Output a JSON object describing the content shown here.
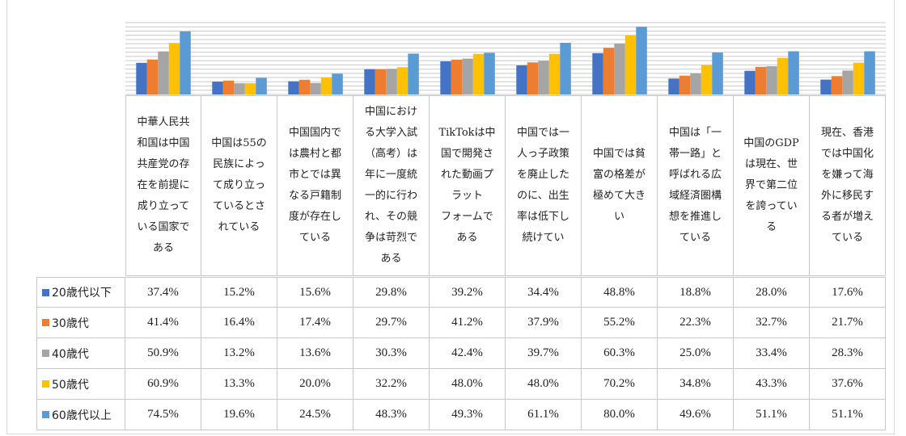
{
  "chart_data": {
    "type": "bar",
    "title": "",
    "xlabel": "",
    "ylabel": "",
    "ylim": [
      0,
      85
    ],
    "grid": true,
    "legend": "left",
    "categories": [
      "中華人民共和国は中国共産党の存在を前提に成り立っている国家である",
      "中国は55の民族によって成り立っているとされている",
      "中国国内では農村と都市とでは異なる戸籍制度が存在している",
      "中国における大学入試（高考）は年に一度統一的に行われ、その競争は苛烈である",
      "TikTokは中国で開発された動画プラットフォームである",
      "中国では一人っ子政策を廃止したのに、出生率は低下し続けてい",
      "中国では貧富の格差が極めて大きい",
      "中国は「一帯一路」と呼ばれる広域経済圏構想を推進している",
      "中国のGDPは現在、世界で第二位を誇っている",
      "現在、香港では中国化を嫌って海外に移民する者が増えている"
    ],
    "series": [
      {
        "name": "20歳代以下",
        "color": "#4472c4",
        "values": [
          37.4,
          15.2,
          15.6,
          29.8,
          39.2,
          34.4,
          48.8,
          18.8,
          28.0,
          17.6
        ],
        "labels": [
          "37.4%",
          "15.2%",
          "15.6%",
          "29.8%",
          "39.2%",
          "34.4%",
          "48.8%",
          "18.8%",
          "28.0%",
          "17.6%"
        ]
      },
      {
        "name": "30歳代",
        "color": "#ed7d31",
        "values": [
          41.4,
          16.4,
          17.4,
          29.7,
          41.2,
          37.9,
          55.2,
          22.3,
          32.7,
          21.7
        ],
        "labels": [
          "41.4%",
          "16.4%",
          "17.4%",
          "29.7%",
          "41.2%",
          "37.9%",
          "55.2%",
          "22.3%",
          "32.7%",
          "21.7%"
        ]
      },
      {
        "name": "40歳代",
        "color": "#a5a5a5",
        "values": [
          50.9,
          13.2,
          13.6,
          30.3,
          42.4,
          39.7,
          60.3,
          25.0,
          33.4,
          28.3
        ],
        "labels": [
          "50.9%",
          "13.2%",
          "13.6%",
          "30.3%",
          "42.4%",
          "39.7%",
          "60.3%",
          "25.0%",
          "33.4%",
          "28.3%"
        ]
      },
      {
        "name": "50歳代",
        "color": "#ffc000",
        "values": [
          60.9,
          13.3,
          20.0,
          32.2,
          48.0,
          48.0,
          70.2,
          34.8,
          43.3,
          37.6
        ],
        "labels": [
          "60.9%",
          "13.3%",
          "20.0%",
          "32.2%",
          "48.0%",
          "48.0%",
          "70.2%",
          "34.8%",
          "43.3%",
          "37.6%"
        ]
      },
      {
        "name": "60歳代以上",
        "color": "#5b9bd5",
        "values": [
          74.5,
          19.6,
          24.5,
          48.3,
          49.3,
          61.1,
          80.0,
          49.6,
          51.1,
          51.1
        ],
        "labels": [
          "74.5%",
          "19.6%",
          "24.5%",
          "48.3%",
          "49.3%",
          "61.1%",
          "80.0%",
          "49.6%",
          "51.1%",
          "51.1%"
        ]
      }
    ],
    "category_lines": [
      [
        "中華人民共",
        "和国は中国",
        "共産党の存",
        "在を前提に",
        "成り立って",
        "いる国家で",
        "ある"
      ],
      [
        "中国は55の",
        "民族によっ",
        "て成り立っ",
        "ているとさ",
        "れている"
      ],
      [
        "中国国内で",
        "は農村と都",
        "市とでは異",
        "なる戸籍制",
        "度が存在し",
        "ている"
      ],
      [
        "中国におけ",
        "る大学入試",
        "（高考）は",
        "年に一度統",
        "一的に行わ",
        "れ、その競",
        "争は苛烈で",
        "ある"
      ],
      [
        "TikTokは中",
        "国で開発さ",
        "れた動画プ",
        "ラット",
        "フォームで",
        "ある"
      ],
      [
        "中国では一",
        "人っ子政策",
        "を廃止した",
        "のに、出生",
        "率は低下し",
        "続けてい"
      ],
      [
        "中国では貧",
        "富の格差が",
        "極めて大き",
        "い"
      ],
      [
        "中国は「一",
        "帯一路」と",
        "呼ばれる広",
        "域経済圏構",
        "想を推進し",
        "ている"
      ],
      [
        "中国のGDP",
        "は現在、世",
        "界で第二位",
        "を誇ってい",
        "る"
      ],
      [
        "現在、香港",
        "では中国化",
        "を嫌って海",
        "外に移民す",
        "る者が増え",
        "ている"
      ]
    ]
  }
}
